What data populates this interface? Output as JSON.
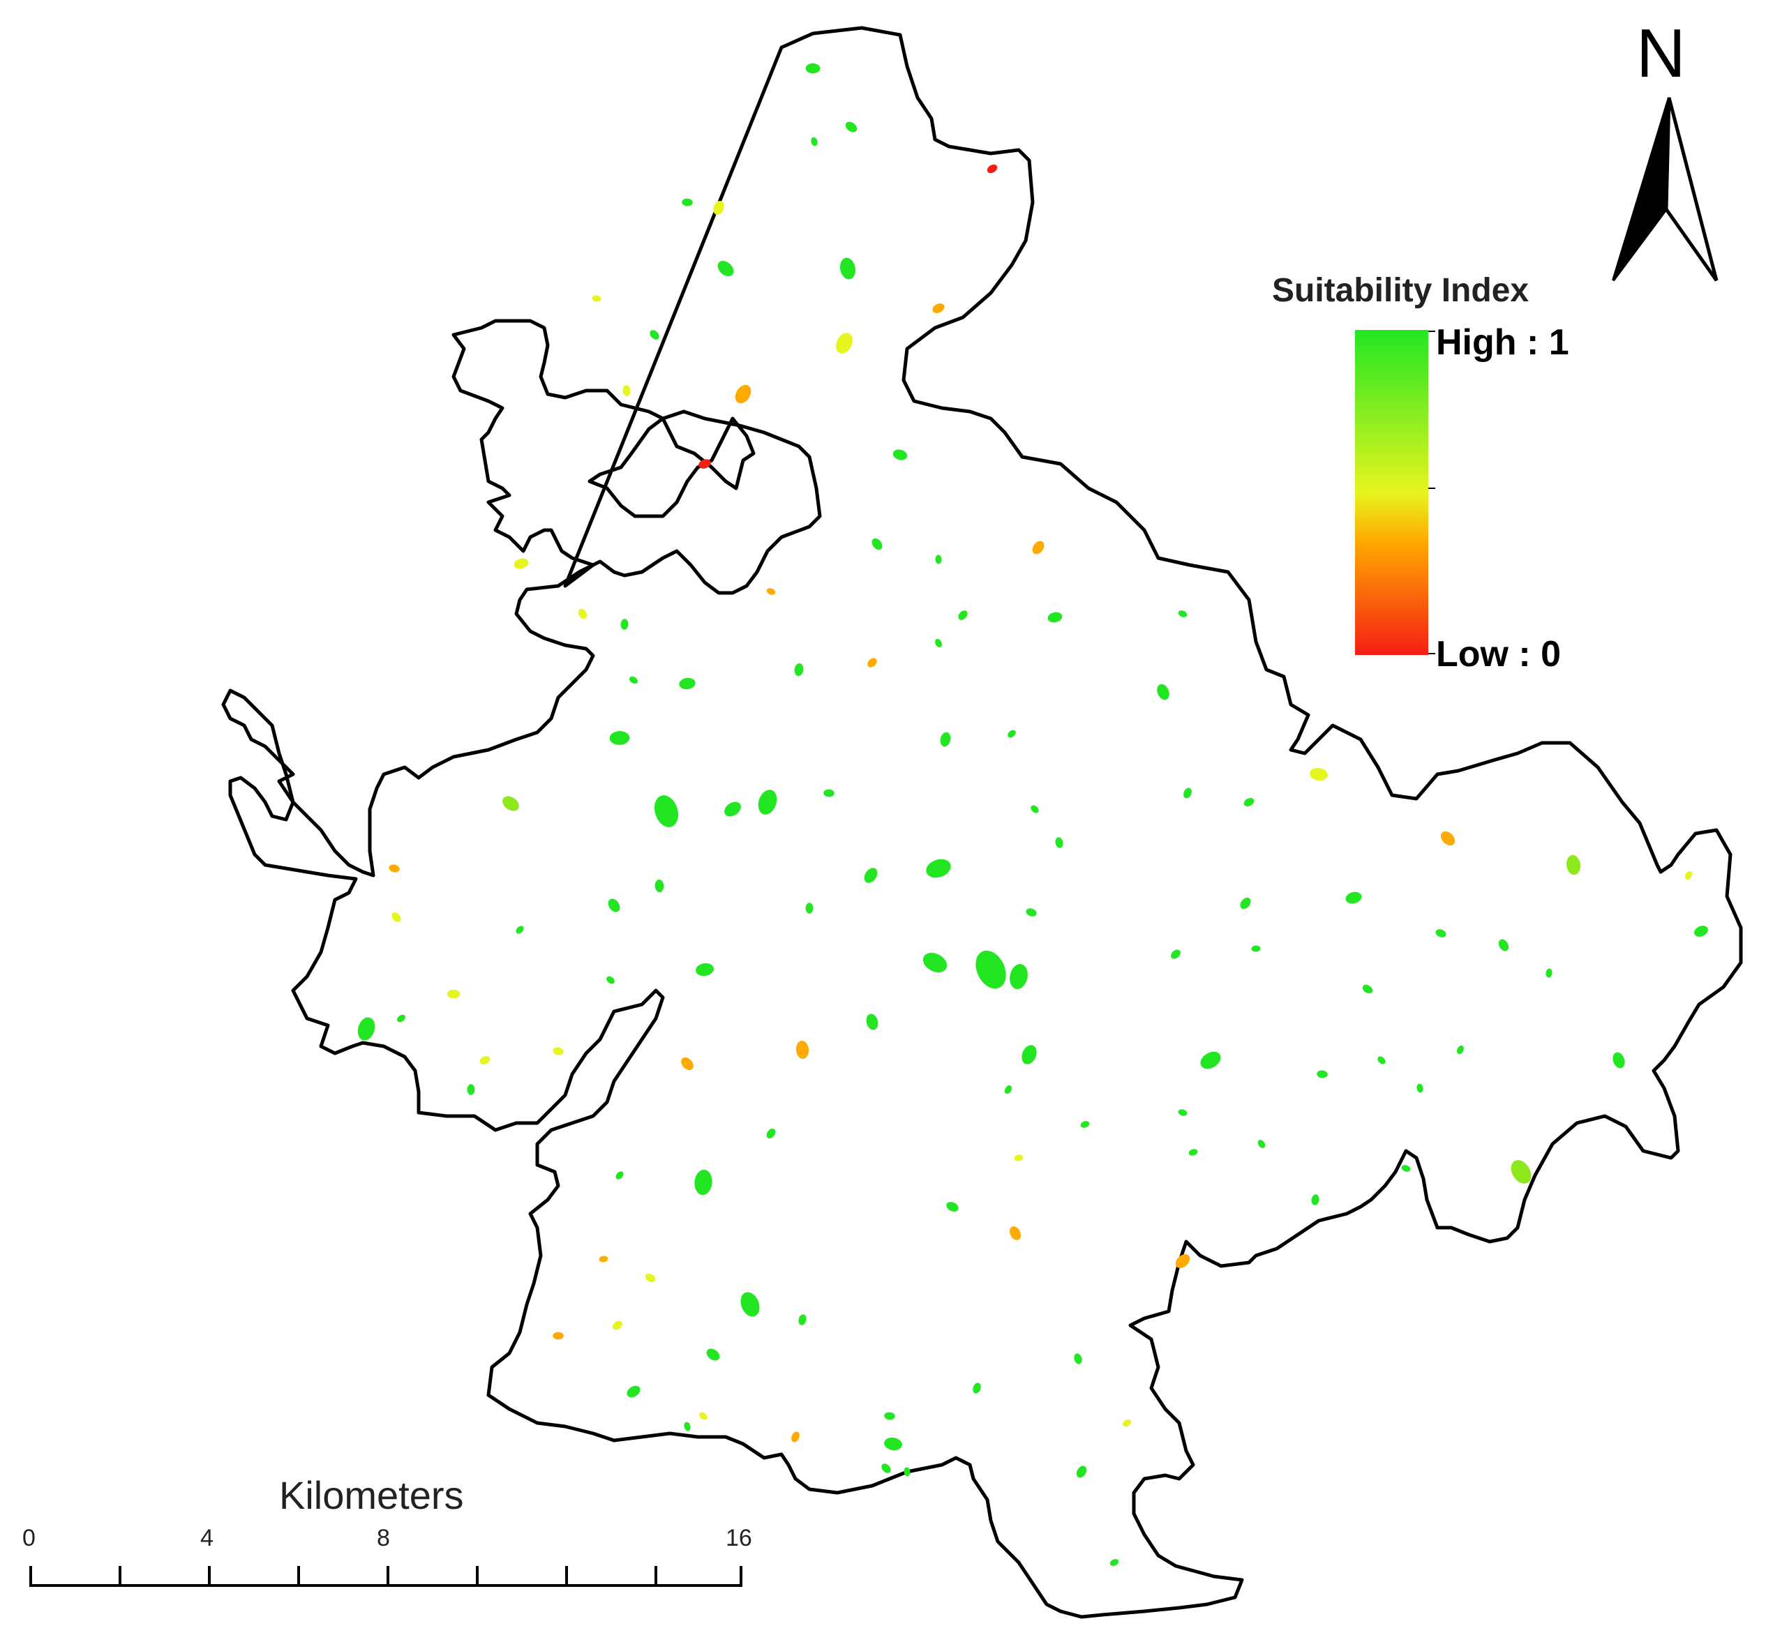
{
  "north_arrow": {
    "letter": "N"
  },
  "legend": {
    "title": "Suitability Index",
    "high_label": "High : 1",
    "low_label": "Low : 0",
    "colors": {
      "high": "#22e622",
      "mid": "#e6f51e",
      "orange": "#ffaa00",
      "low": "#f51e14"
    }
  },
  "scale_bar": {
    "title": "Kilometers",
    "labels": [
      "0",
      "4",
      "8",
      "16"
    ]
  },
  "colors": {
    "boundary": "#000000",
    "background": "#ffffff"
  }
}
